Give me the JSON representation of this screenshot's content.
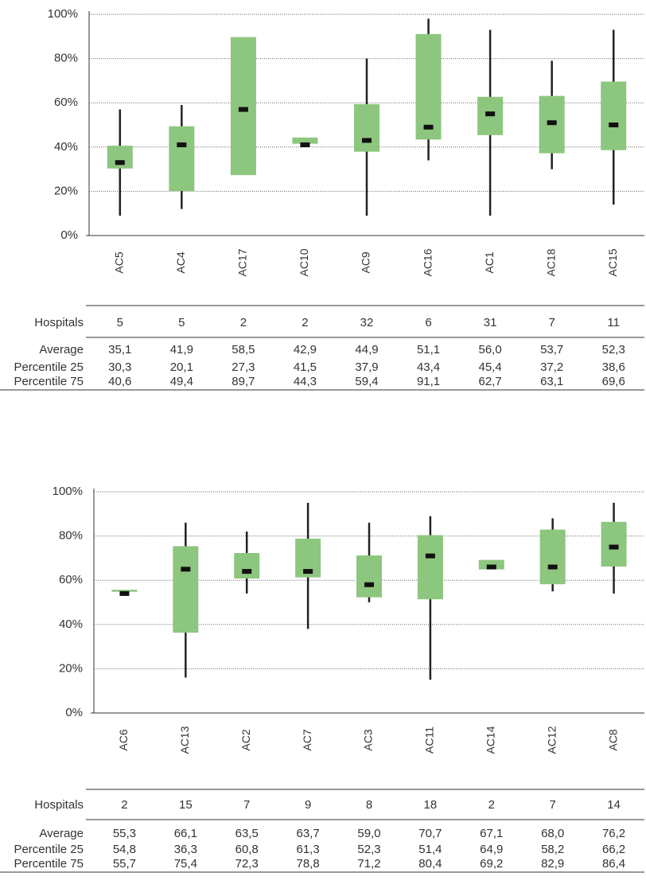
{
  "chart_data": [
    {
      "type": "box",
      "color": "#8dc67e",
      "median_color": "#111111",
      "whisker_color": "#222222",
      "grid": true,
      "categories": [
        "AC5",
        "AC4",
        "AC17",
        "AC10",
        "AC9",
        "AC16",
        "AC1",
        "AC18",
        "AC15"
      ],
      "ylim": [
        0,
        100
      ],
      "yticks": [
        {
          "value": 0,
          "label": "0%"
        },
        {
          "value": 20,
          "label": "20%"
        },
        {
          "value": 40,
          "label": "40%"
        },
        {
          "value": 60,
          "label": "60%"
        },
        {
          "value": 80,
          "label": "80%"
        },
        {
          "value": 100,
          "label": "100%"
        }
      ],
      "min": [
        9,
        12,
        null,
        null,
        9,
        34,
        9,
        30,
        14
      ],
      "median": [
        33,
        41,
        57,
        41,
        43,
        49,
        55,
        51,
        50
      ],
      "max": [
        57,
        59,
        null,
        null,
        80,
        98,
        93,
        79,
        93
      ],
      "table": [
        {
          "name": "Hospitals",
          "values": [
            5,
            5,
            2,
            2,
            32,
            6,
            31,
            7,
            11
          ]
        },
        {
          "name": "Average",
          "values": [
            35.1,
            41.9,
            58.5,
            42.9,
            44.9,
            51.1,
            56.0,
            53.7,
            52.3
          ],
          "value_labels": [
            "35,1",
            "41,9",
            "58,5",
            "42,9",
            "44,9",
            "51,1",
            "56,0",
            "53,7",
            "52,3"
          ]
        },
        {
          "name": "Percentile 25",
          "values": [
            30.3,
            20.1,
            27.3,
            41.5,
            37.9,
            43.4,
            45.4,
            37.2,
            38.6
          ],
          "value_labels": [
            "30,3",
            "20,1",
            "27,3",
            "41,5",
            "37,9",
            "43,4",
            "45,4",
            "37,2",
            "38,6"
          ]
        },
        {
          "name": "Percentile 75",
          "values": [
            40.6,
            49.4,
            89.7,
            44.3,
            59.4,
            91.1,
            62.7,
            63.1,
            69.6
          ],
          "value_labels": [
            "40,6",
            "49,4",
            "89,7",
            "44,3",
            "59,4",
            "91,1",
            "62,7",
            "63,1",
            "69,6"
          ]
        }
      ]
    },
    {
      "type": "box",
      "color": "#8dc67e",
      "median_color": "#111111",
      "whisker_color": "#222222",
      "grid": true,
      "categories": [
        "AC6",
        "AC13",
        "AC2",
        "AC7",
        "AC3",
        "AC11",
        "AC14",
        "AC12",
        "AC8"
      ],
      "ylim": [
        0,
        100
      ],
      "yticks": [
        {
          "value": 0,
          "label": "0%"
        },
        {
          "value": 20,
          "label": "20%"
        },
        {
          "value": 40,
          "label": "40%"
        },
        {
          "value": 60,
          "label": "60%"
        },
        {
          "value": 80,
          "label": "80%"
        },
        {
          "value": 100,
          "label": "100%"
        }
      ],
      "min": [
        null,
        16,
        54,
        38,
        50,
        15,
        null,
        55,
        54
      ],
      "median": [
        54,
        65,
        64,
        64,
        58,
        71,
        66,
        66,
        75
      ],
      "max": [
        null,
        86,
        82,
        95,
        86,
        89,
        null,
        88,
        95
      ],
      "table": [
        {
          "name": "Hospitals",
          "values": [
            2,
            15,
            7,
            9,
            8,
            18,
            2,
            7,
            14
          ]
        },
        {
          "name": "Average",
          "values": [
            55.3,
            66.1,
            63.5,
            63.7,
            59.0,
            70.7,
            67.1,
            68.0,
            76.2
          ],
          "value_labels": [
            "55,3",
            "66,1",
            "63,5",
            "63,7",
            "59,0",
            "70,7",
            "67,1",
            "68,0",
            "76,2"
          ]
        },
        {
          "name": "Percentile 25",
          "values": [
            54.8,
            36.3,
            60.8,
            61.3,
            52.3,
            51.4,
            64.9,
            58.2,
            66.2
          ],
          "value_labels": [
            "54,8",
            "36,3",
            "60,8",
            "61,3",
            "52,3",
            "51,4",
            "64,9",
            "58,2",
            "66,2"
          ]
        },
        {
          "name": "Percentile 75",
          "values": [
            55.7,
            75.4,
            72.3,
            78.8,
            71.2,
            80.4,
            69.2,
            82.9,
            86.4
          ],
          "value_labels": [
            "55,7",
            "75,4",
            "72,3",
            "78,8",
            "71,2",
            "80,4",
            "69,2",
            "82,9",
            "86,4"
          ]
        }
      ]
    }
  ]
}
